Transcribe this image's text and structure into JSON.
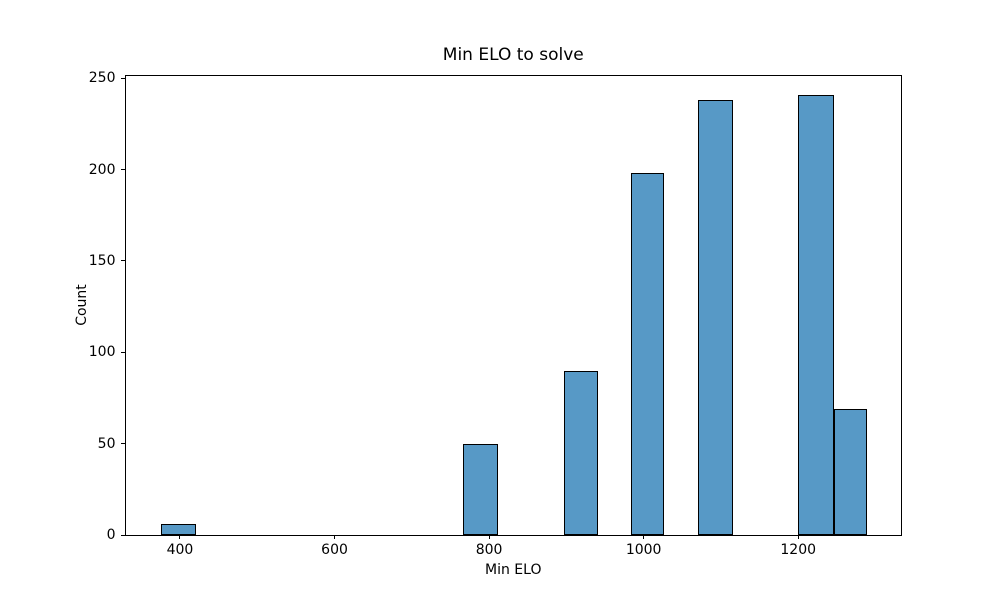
{
  "chart_data": {
    "type": "bar",
    "title": "Min ELO to solve",
    "xlabel": "Min ELO",
    "ylabel": "Count",
    "x_ticks": [
      400,
      600,
      800,
      1000,
      1200
    ],
    "y_ticks": [
      0,
      50,
      100,
      150,
      200,
      250
    ],
    "xlim": [
      329.5,
      1333
    ],
    "ylim": [
      0,
      251.5
    ],
    "grid": false,
    "legend": false,
    "bar_color": "#5799c6",
    "bar_edge_color": "#000000",
    "bars": [
      {
        "x0": 375,
        "x1": 421,
        "count": 6
      },
      {
        "x0": 766,
        "x1": 811,
        "count": 50
      },
      {
        "x0": 897,
        "x1": 941,
        "count": 90
      },
      {
        "x0": 984,
        "x1": 1026,
        "count": 198
      },
      {
        "x0": 1070,
        "x1": 1115,
        "count": 238
      },
      {
        "x0": 1200,
        "x1": 1246,
        "count": 241
      },
      {
        "x0": 1246,
        "x1": 1289,
        "count": 69
      }
    ]
  }
}
